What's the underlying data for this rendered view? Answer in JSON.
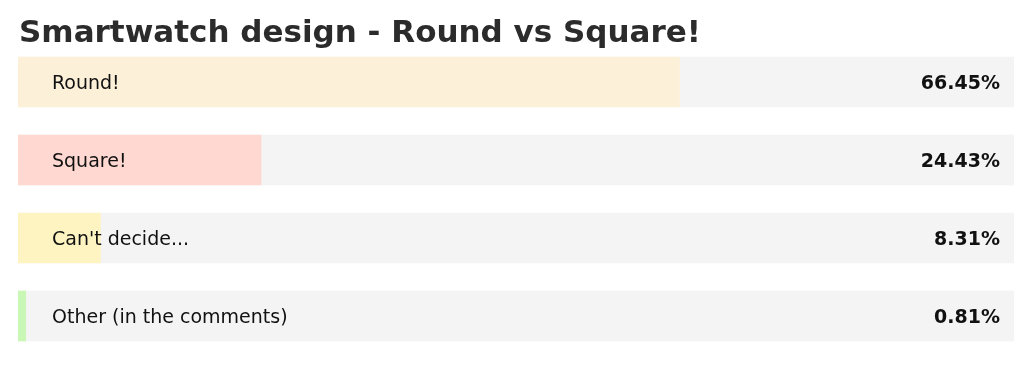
{
  "chart_data": {
    "type": "bar",
    "orientation": "horizontal",
    "title": "Smartwatch design - Round vs Square!",
    "categories": [
      "Round!",
      "Square!",
      "Can't decide...",
      "Other (in the comments)"
    ],
    "values": [
      66.45,
      24.43,
      8.31,
      0.81
    ],
    "value_labels": [
      "66.45%",
      "24.43%",
      "8.31%",
      "0.81%"
    ],
    "colors": [
      "#fdf0d8",
      "#ffd9d1",
      "#fdf4c2",
      "#c9f7b5"
    ],
    "xlim": [
      0,
      100
    ],
    "tick_labels": "y",
    "grid": false
  }
}
